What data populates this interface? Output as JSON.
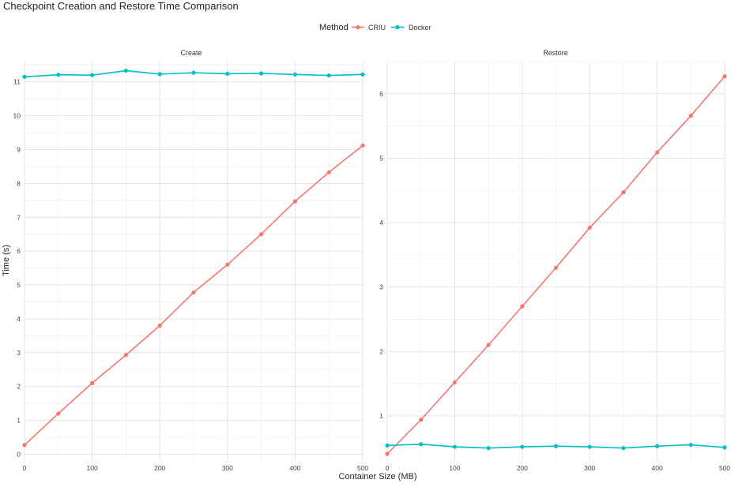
{
  "chart_data": {
    "type": "line",
    "title": "Checkpoint Creation and Restore Time Comparison",
    "xlabel": "Container Size (MB)",
    "ylabel": "Time (s)",
    "legend": {
      "title": "Method",
      "position": "top",
      "entries": [
        {
          "name": "CRIU",
          "color": "#F8766D"
        },
        {
          "name": "Docker",
          "color": "#00BFC4"
        }
      ]
    },
    "grid": true,
    "x": [
      0,
      50,
      100,
      150,
      200,
      250,
      300,
      350,
      400,
      450,
      500
    ],
    "panels": [
      {
        "name": "Create",
        "xlim": [
          0,
          500
        ],
        "xticks": [
          0,
          100,
          200,
          300,
          400,
          500
        ],
        "ylim": [
          -0.2,
          11.6
        ],
        "yticks": [
          0,
          1,
          2,
          3,
          4,
          5,
          6,
          7,
          8,
          9,
          10,
          11
        ],
        "series": [
          {
            "name": "CRIU",
            "color": "#F8766D",
            "values": [
              0.27,
              1.2,
              2.1,
              2.93,
              3.8,
              4.78,
              5.6,
              6.5,
              7.47,
              8.33,
              9.12
            ]
          },
          {
            "name": "Docker",
            "color": "#00BFC4",
            "values": [
              11.15,
              11.21,
              11.2,
              11.33,
              11.23,
              11.27,
              11.24,
              11.25,
              11.22,
              11.19,
              11.22
            ]
          }
        ]
      },
      {
        "name": "Restore",
        "xlim": [
          0,
          500
        ],
        "xticks": [
          0,
          100,
          200,
          300,
          400,
          500
        ],
        "ylim": [
          0.3,
          6.5
        ],
        "yticks": [
          1,
          2,
          3,
          4,
          5,
          6
        ],
        "series": [
          {
            "name": "CRIU",
            "color": "#F8766D",
            "values": [
              0.41,
              0.94,
              1.52,
              2.1,
              2.7,
              3.3,
              3.92,
              4.47,
              5.09,
              5.66,
              6.27
            ]
          },
          {
            "name": "Docker",
            "color": "#00BFC4",
            "values": [
              0.54,
              0.56,
              0.52,
              0.5,
              0.52,
              0.53,
              0.52,
              0.5,
              0.53,
              0.55,
              0.51
            ]
          }
        ]
      }
    ]
  }
}
